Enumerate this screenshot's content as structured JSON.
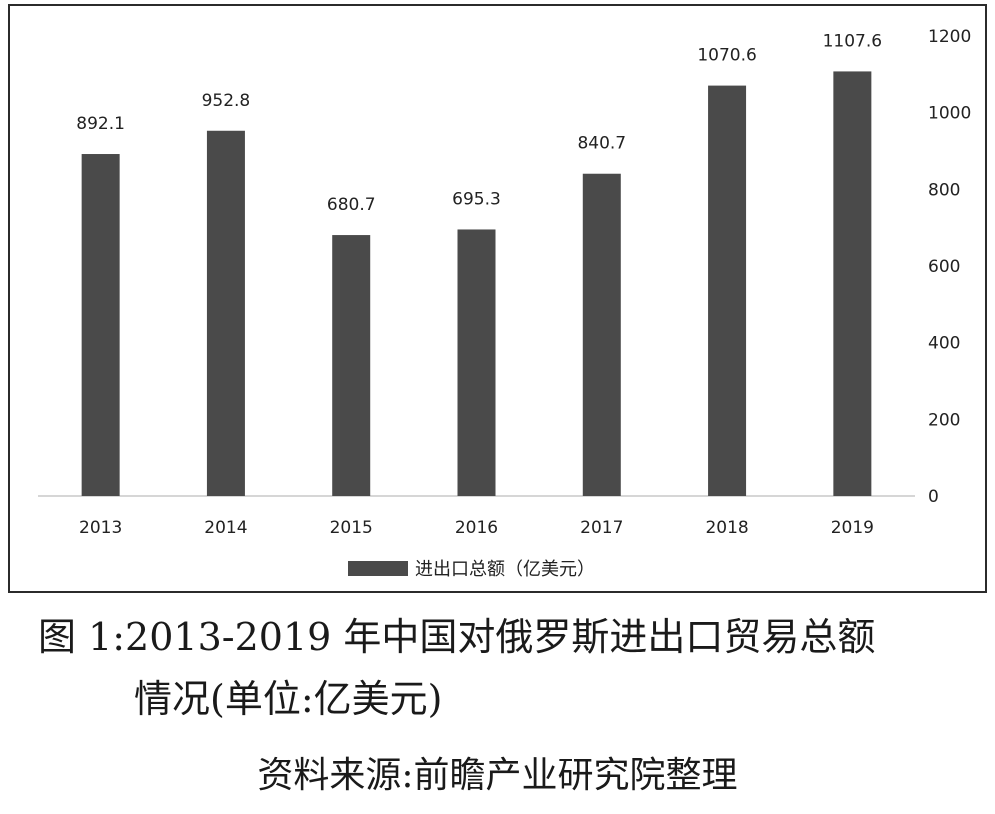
{
  "chart_data": {
    "type": "bar",
    "categories": [
      "2013",
      "2014",
      "2015",
      "2016",
      "2017",
      "2018",
      "2019"
    ],
    "series": [
      {
        "name": "进出口总额（亿美元）",
        "values": [
          892.1,
          952.8,
          680.7,
          695.3,
          840.7,
          1070.6,
          1107.6
        ]
      }
    ],
    "data_labels": [
      "892.1",
      "952.8",
      "680.7",
      "695.3",
      "840.7",
      "1070.6",
      "1107.6"
    ],
    "y_ticks": [
      "0",
      "200",
      "400",
      "600",
      "800",
      "1000",
      "1200"
    ],
    "ylim": [
      0,
      1200
    ],
    "y_axis_side": "right",
    "grid": false,
    "legend_position": "bottom",
    "bar_color": "#4a4a4a"
  },
  "caption": {
    "line1": "图 1:2013-2019 年中国对俄罗斯进出口贸易总额",
    "line2": "情况(单位:亿美元)"
  },
  "source": "资料来源:前瞻产业研究院整理"
}
